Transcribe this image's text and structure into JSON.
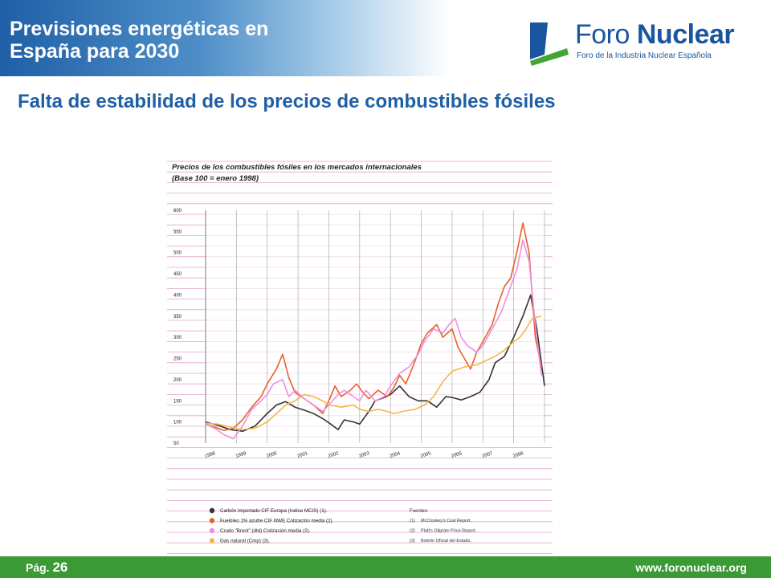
{
  "header": {
    "title_line1": "Previsiones energéticas en",
    "title_line2": "España para 2030",
    "logo_word1": "Foro",
    "logo_word2": "Nuclear",
    "logo_sub": "Foro de la Industria Nuclear Española"
  },
  "subtitle": "Falta de estabilidad de los precios de combustibles fósiles",
  "footer": {
    "page_prefix": "Pág.",
    "page_number": "26",
    "site": "www.foronuclear.org"
  },
  "colors": {
    "header_blue": "#1f5fa6",
    "footer_green": "#3a9a36",
    "grid_pink": "#e0a6cf"
  },
  "chart_data": {
    "type": "line",
    "title_line1": "Precios de los combustibles fósiles en los mercados internacionales",
    "title_line2": "(Base 100 = enero 1998)",
    "ylim": [
      50,
      600
    ],
    "yticks": [
      50,
      100,
      150,
      200,
      250,
      300,
      350,
      400,
      450,
      500,
      550,
      600
    ],
    "xticks": [
      "1998",
      "1999",
      "2000",
      "2001",
      "2002",
      "2003",
      "2004",
      "2005",
      "2006",
      "2007",
      "2008"
    ],
    "xlim": [
      1998,
      2009
    ],
    "grid": true,
    "legend_position": "bottom-left",
    "series": [
      {
        "name": "Carbón importado CIF Europa (índice MCIS) (1).",
        "color": "#333333",
        "points": [
          [
            1998.0,
            100
          ],
          [
            1998.4,
            92
          ],
          [
            1998.8,
            82
          ],
          [
            1999.2,
            78
          ],
          [
            1999.6,
            90
          ],
          [
            2000.0,
            120
          ],
          [
            2000.3,
            140
          ],
          [
            2000.6,
            148
          ],
          [
            2000.9,
            135
          ],
          [
            2001.2,
            128
          ],
          [
            2001.5,
            120
          ],
          [
            2001.8,
            108
          ],
          [
            2002.0,
            98
          ],
          [
            2002.3,
            82
          ],
          [
            2002.5,
            105
          ],
          [
            2002.8,
            100
          ],
          [
            2003.0,
            95
          ],
          [
            2003.3,
            125
          ],
          [
            2003.5,
            150
          ],
          [
            2003.8,
            158
          ],
          [
            2004.0,
            165
          ],
          [
            2004.3,
            185
          ],
          [
            2004.6,
            160
          ],
          [
            2004.9,
            150
          ],
          [
            2005.2,
            150
          ],
          [
            2005.5,
            135
          ],
          [
            2005.8,
            160
          ],
          [
            2006.0,
            158
          ],
          [
            2006.3,
            152
          ],
          [
            2006.6,
            160
          ],
          [
            2006.9,
            170
          ],
          [
            2007.2,
            200
          ],
          [
            2007.4,
            240
          ],
          [
            2007.7,
            255
          ],
          [
            2008.0,
            300
          ],
          [
            2008.3,
            350
          ],
          [
            2008.55,
            400
          ],
          [
            2008.75,
            320
          ],
          [
            2009.0,
            185
          ]
        ]
      },
      {
        "name": "Fuelóleo 1% azufre CIF NWE Cotización media (2).",
        "color": "#e8602c",
        "points": [
          [
            1998.0,
            95
          ],
          [
            1998.3,
            88
          ],
          [
            1998.6,
            80
          ],
          [
            1998.9,
            85
          ],
          [
            1999.2,
            105
          ],
          [
            1999.5,
            135
          ],
          [
            1999.8,
            160
          ],
          [
            2000.0,
            190
          ],
          [
            2000.3,
            225
          ],
          [
            2000.5,
            260
          ],
          [
            2000.7,
            205
          ],
          [
            2000.9,
            170
          ],
          [
            2001.2,
            155
          ],
          [
            2001.5,
            140
          ],
          [
            2001.8,
            120
          ],
          [
            2002.0,
            150
          ],
          [
            2002.2,
            185
          ],
          [
            2002.4,
            160
          ],
          [
            2002.7,
            175
          ],
          [
            2002.9,
            190
          ],
          [
            2003.1,
            170
          ],
          [
            2003.3,
            155
          ],
          [
            2003.6,
            175
          ],
          [
            2003.9,
            160
          ],
          [
            2004.1,
            180
          ],
          [
            2004.3,
            210
          ],
          [
            2004.5,
            190
          ],
          [
            2004.8,
            245
          ],
          [
            2005.0,
            285
          ],
          [
            2005.2,
            310
          ],
          [
            2005.5,
            330
          ],
          [
            2005.7,
            300
          ],
          [
            2006.0,
            320
          ],
          [
            2006.2,
            275
          ],
          [
            2006.4,
            250
          ],
          [
            2006.6,
            225
          ],
          [
            2006.8,
            265
          ],
          [
            2007.0,
            290
          ],
          [
            2007.3,
            330
          ],
          [
            2007.5,
            380
          ],
          [
            2007.7,
            420
          ],
          [
            2007.9,
            440
          ],
          [
            2008.1,
            500
          ],
          [
            2008.3,
            570
          ],
          [
            2008.5,
            500
          ],
          [
            2008.7,
            300
          ],
          [
            2008.9,
            230
          ]
        ]
      },
      {
        "name": "Crudo \"Brent\" (dtd) Cotización media (2).",
        "color": "#f08ce0",
        "points": [
          [
            1998.0,
            95
          ],
          [
            1998.3,
            85
          ],
          [
            1998.6,
            70
          ],
          [
            1998.9,
            60
          ],
          [
            1999.2,
            90
          ],
          [
            1999.5,
            130
          ],
          [
            1999.8,
            150
          ],
          [
            2000.0,
            165
          ],
          [
            2000.2,
            190
          ],
          [
            2000.5,
            200
          ],
          [
            2000.7,
            160
          ],
          [
            2000.9,
            175
          ],
          [
            2001.2,
            155
          ],
          [
            2001.5,
            140
          ],
          [
            2001.8,
            125
          ],
          [
            2002.0,
            140
          ],
          [
            2002.3,
            165
          ],
          [
            2002.5,
            175
          ],
          [
            2002.8,
            160
          ],
          [
            2003.0,
            150
          ],
          [
            2003.2,
            175
          ],
          [
            2003.5,
            150
          ],
          [
            2003.8,
            160
          ],
          [
            2004.0,
            185
          ],
          [
            2004.3,
            215
          ],
          [
            2004.6,
            230
          ],
          [
            2004.9,
            260
          ],
          [
            2005.1,
            290
          ],
          [
            2005.4,
            320
          ],
          [
            2005.7,
            310
          ],
          [
            2005.9,
            330
          ],
          [
            2006.1,
            345
          ],
          [
            2006.3,
            300
          ],
          [
            2006.5,
            280
          ],
          [
            2006.8,
            265
          ],
          [
            2007.0,
            280
          ],
          [
            2007.3,
            320
          ],
          [
            2007.6,
            360
          ],
          [
            2007.9,
            420
          ],
          [
            2008.1,
            460
          ],
          [
            2008.3,
            530
          ],
          [
            2008.5,
            480
          ],
          [
            2008.7,
            330
          ],
          [
            2008.9,
            210
          ]
        ]
      },
      {
        "name": "Gas natural (Cmp) (3).",
        "color": "#f5b54a",
        "points": [
          [
            1998.0,
            97
          ],
          [
            1998.4,
            95
          ],
          [
            1998.8,
            88
          ],
          [
            1999.2,
            82
          ],
          [
            1999.6,
            85
          ],
          [
            2000.0,
            100
          ],
          [
            2000.3,
            120
          ],
          [
            2000.6,
            140
          ],
          [
            2000.9,
            150
          ],
          [
            2001.2,
            165
          ],
          [
            2001.5,
            160
          ],
          [
            2001.8,
            150
          ],
          [
            2002.0,
            140
          ],
          [
            2002.4,
            135
          ],
          [
            2002.8,
            140
          ],
          [
            2003.0,
            130
          ],
          [
            2003.3,
            125
          ],
          [
            2003.6,
            130
          ],
          [
            2003.9,
            125
          ],
          [
            2004.1,
            120
          ],
          [
            2004.4,
            125
          ],
          [
            2004.8,
            130
          ],
          [
            2005.1,
            140
          ],
          [
            2005.4,
            160
          ],
          [
            2005.7,
            195
          ],
          [
            2006.0,
            220
          ],
          [
            2006.4,
            230
          ],
          [
            2006.8,
            235
          ],
          [
            2007.1,
            245
          ],
          [
            2007.4,
            255
          ],
          [
            2007.7,
            270
          ],
          [
            2008.0,
            290
          ],
          [
            2008.2,
            300
          ],
          [
            2008.4,
            320
          ],
          [
            2008.6,
            345
          ],
          [
            2008.9,
            350
          ]
        ]
      }
    ],
    "sources_title": "Fuentes:",
    "sources": [
      {
        "num": "(1)",
        "text": "McCloskey's Coal Report."
      },
      {
        "num": "(2)",
        "text": "Platt's Oilgram Price Report."
      },
      {
        "num": "(3)",
        "text": "Boletín Oficial del Estado."
      }
    ]
  }
}
